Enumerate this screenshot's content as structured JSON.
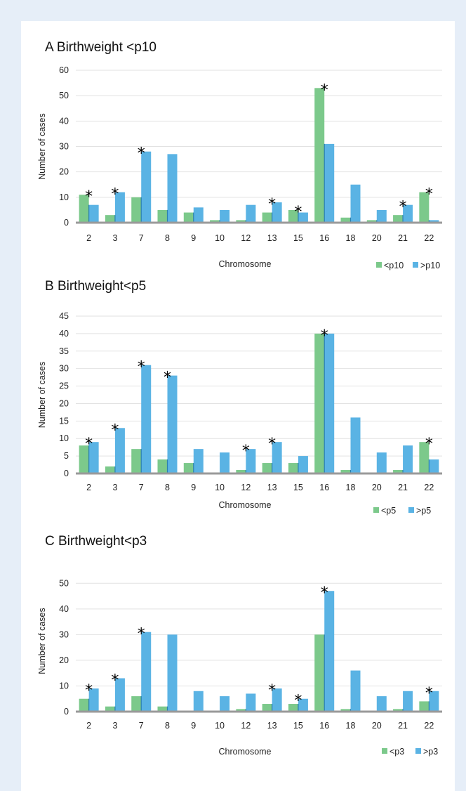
{
  "chart_data": [
    {
      "type": "bar",
      "title": "A Birthweight <p10",
      "xlabel": "Chromosome",
      "ylabel": "Number of cases",
      "categories": [
        "2",
        "3",
        "7",
        "8",
        "9",
        "10",
        "12",
        "13",
        "15",
        "16",
        "18",
        "20",
        "21",
        "22"
      ],
      "series": [
        {
          "name": "<p10",
          "color": "#7cc98b",
          "values": [
            11,
            3,
            10,
            5,
            4,
            1,
            1,
            4,
            5,
            53,
            2,
            1,
            3,
            12
          ]
        },
        {
          "name": ">p10",
          "color": "#5ab3e4",
          "values": [
            7,
            12,
            28,
            27,
            6,
            5,
            7,
            8,
            4,
            31,
            15,
            5,
            7,
            1
          ]
        }
      ],
      "yticks": [
        0,
        10,
        20,
        30,
        40,
        50,
        60
      ],
      "ylim": [
        0,
        60
      ],
      "significant": [
        "2",
        "3",
        "7",
        "13",
        "15",
        "16",
        "21",
        "22"
      ],
      "marker": "*",
      "grid": true,
      "legend": "bottom-right"
    },
    {
      "type": "bar",
      "title": "B Birthweight<p5",
      "xlabel": "Chromosome",
      "ylabel": "Number of cases",
      "categories": [
        "2",
        "3",
        "7",
        "8",
        "9",
        "10",
        "12",
        "13",
        "15",
        "16",
        "18",
        "20",
        "21",
        "22"
      ],
      "series": [
        {
          "name": "<p5",
          "color": "#7cc98b",
          "values": [
            8,
            2,
            7,
            4,
            3,
            0,
            1,
            3,
            3,
            40,
            1,
            0,
            1,
            9
          ]
        },
        {
          "name": ">p5",
          "color": "#5ab3e4",
          "values": [
            9,
            13,
            31,
            28,
            7,
            6,
            7,
            9,
            5,
            40,
            16,
            6,
            8,
            4
          ]
        }
      ],
      "yticks": [
        0,
        5,
        10,
        15,
        20,
        25,
        30,
        35,
        40,
        45
      ],
      "ylim": [
        0,
        45
      ],
      "significant": [
        "2",
        "3",
        "7",
        "8",
        "12",
        "13",
        "16",
        "22"
      ],
      "marker": "*",
      "grid": true,
      "legend": "bottom-right"
    },
    {
      "type": "bar",
      "title": "C Birthweight<p3",
      "xlabel": "Chromosome",
      "ylabel": "Number of cases",
      "categories": [
        "2",
        "3",
        "7",
        "8",
        "9",
        "10",
        "12",
        "13",
        "15",
        "16",
        "18",
        "20",
        "21",
        "22"
      ],
      "series": [
        {
          "name": "<p3",
          "color": "#7cc98b",
          "values": [
            5,
            2,
            6,
            2,
            0,
            0,
            1,
            3,
            3,
            30,
            1,
            0,
            1,
            4
          ]
        },
        {
          "name": ">p3",
          "color": "#5ab3e4",
          "values": [
            9,
            13,
            31,
            30,
            8,
            6,
            7,
            9,
            5,
            47,
            16,
            6,
            8,
            8
          ]
        }
      ],
      "yticks": [
        0,
        10,
        20,
        30,
        40,
        50
      ],
      "ylim": [
        0,
        55
      ],
      "significant": [
        "2",
        "3",
        "7",
        "13",
        "15",
        "16",
        "22"
      ],
      "marker": "*",
      "grid": true,
      "legend": "bottom-right"
    }
  ]
}
